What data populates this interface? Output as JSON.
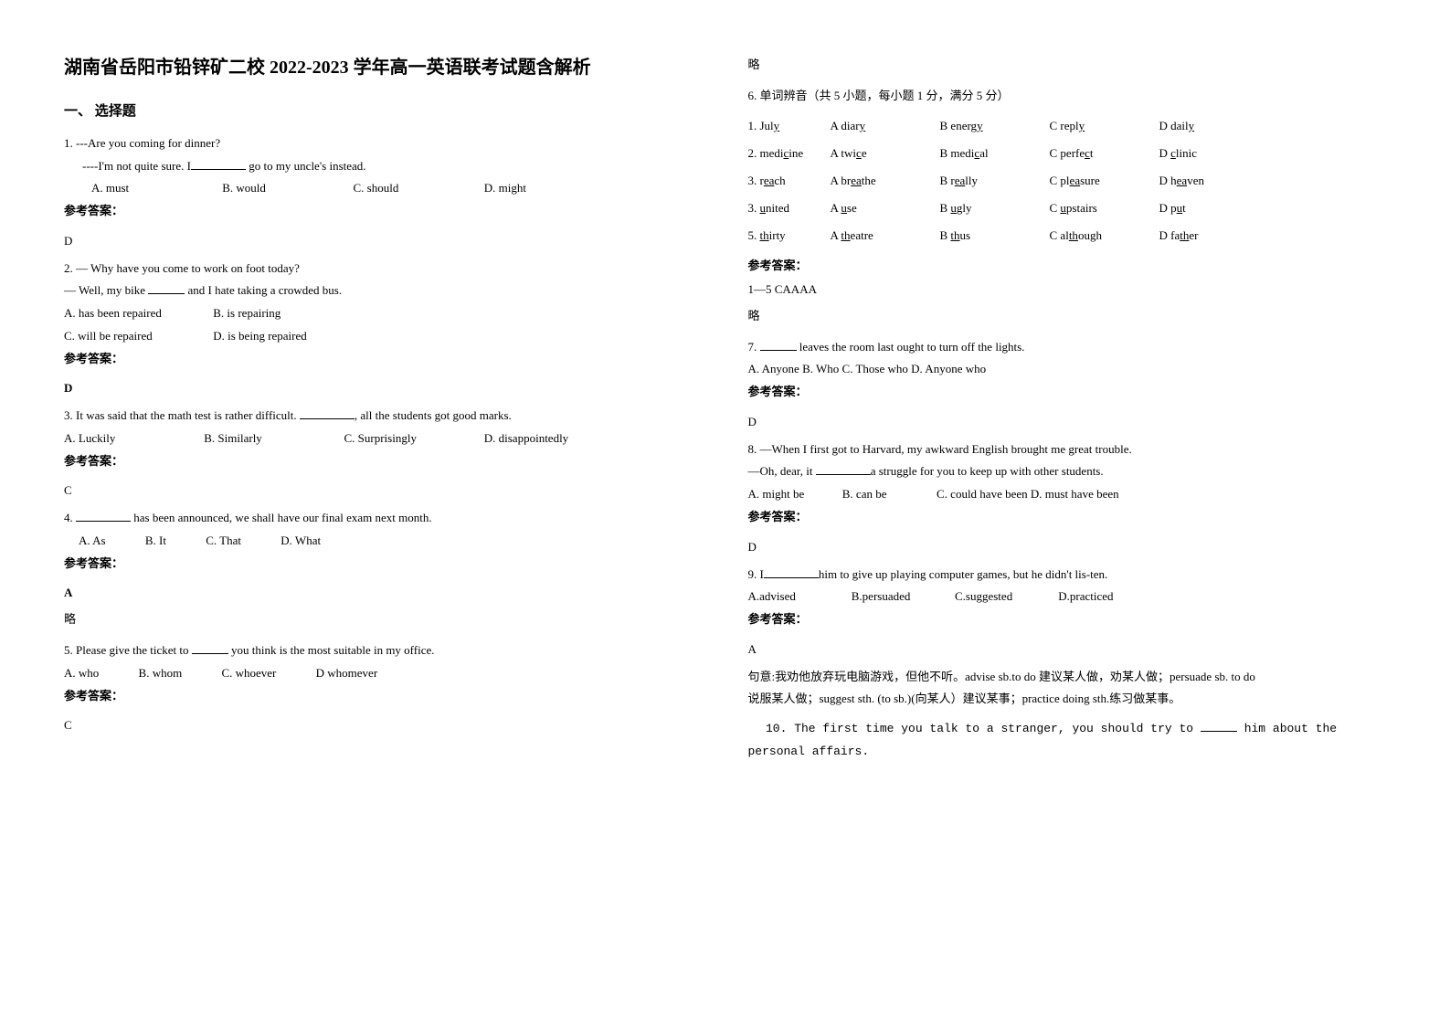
{
  "title": "湖南省岳阳市铅锌矿二校 2022-2023 学年高一英语联考试题含解析",
  "section1_header": "一、 选择题",
  "q1": {
    "line1": "1. ---Are you coming for dinner?",
    "line2_prefix": "----I'm not quite sure. I",
    "line2_suffix": " go to my uncle's instead.",
    "optA": "A. must",
    "optB": "B. would",
    "optC": "C. should",
    "optD": "D. might",
    "ans_label": "参考答案：",
    "ans": "D"
  },
  "q2": {
    "line1": "2. — Why have you come to work on foot today?",
    "line2_prefix": "— Well, my bike ",
    "line2_suffix": " and I hate taking a crowded bus.",
    "optA": "A. has been repaired",
    "optB": "B. is repairing",
    "optC": "C. will be repaired",
    "optD": "D. is being repaired",
    "ans_label": "参考答案：",
    "ans": "D"
  },
  "q3": {
    "line1_prefix": "3. It was said that the math test is rather difficult.  ",
    "line1_suffix": ", all the students got good marks.",
    "optA": "A. Luckily",
    "optB": "B. Similarly",
    "optC": "C. Surprisingly",
    "optD": "D. disappointedly",
    "ans_label": "参考答案：",
    "ans": "C"
  },
  "q4": {
    "line1_prefix": "4.  ",
    "line1_suffix": " has been announced, we shall have our final exam next month.",
    "optA": "A. As",
    "optB": "B. It",
    "optC": "C. That",
    "optD": "D. What",
    "ans_label": "参考答案：",
    "ans": "A",
    "omit": "略"
  },
  "q5": {
    "line1_prefix": "5. Please give the ticket to ",
    "line1_suffix": " you think is the most suitable in my office.",
    "optA": "A. who",
    "optB": "B. whom",
    "optC": "C. whoever",
    "optD": "D whomever",
    "ans_label": "参考答案：",
    "ans": "C",
    "omit": "略"
  },
  "q6": {
    "header": "6.  单词辨音（共 5 小题，每小题 1 分，满分 5 分）",
    "rows": [
      {
        "w": "1. Jul<u>y</u>",
        "a": "A diar<u>y</u>",
        "b": "B energ<u>y</u>",
        "c": "C repl<u>y</u>",
        "d": "D dail<u>y</u>"
      },
      {
        "w": "2. medi<u>c</u>ine",
        "a": "A twi<u>c</u>e",
        "b": "B medi<u>c</u>al",
        "c": "C perfe<u>c</u>t",
        "d": "D <u>c</u>linic"
      },
      {
        "w": "3. r<u>ea</u>ch",
        "a": "A br<u>ea</u>the",
        "b": "B r<u>ea</u>lly",
        "c": "C pl<u>ea</u>sure",
        "d": "D h<u>ea</u>ven"
      },
      {
        "w": "3. <u>u</u>nited",
        "a": "A <u>u</u>se",
        "b": "B <u>u</u>gly",
        "c": "C <u>u</u>pstairs",
        "d": "D p<u>u</u>t"
      },
      {
        "w": "5. <u>th</u>irty",
        "a": "A <u>th</u>eatre",
        "b": "B <u>th</u>us",
        "c": "C al<u>th</u>ough",
        "d": "D fa<u>th</u>er"
      }
    ],
    "ans_label": "参考答案：",
    "ans": "1—5 CAAAA",
    "omit": "略"
  },
  "q7": {
    "line1_prefix": "7. ",
    "line1_suffix": " leaves the room last ought to turn off the lights.",
    "opts": "A. Anyone   B. Who   C. Those who  D. Anyone who",
    "ans_label": "参考答案：",
    "ans": "D"
  },
  "q8": {
    "line1": "8. —When I first got to Harvard, my awkward English brought me great trouble.",
    "line2_prefix": "—Oh, dear, it ",
    "line2_suffix": "a struggle for you to keep up with other students.",
    "optA": "A. might be",
    "optB": "B. can be",
    "optC": "C. could have been D. must have been",
    "ans_label": "参考答案：",
    "ans": "D"
  },
  "q9": {
    "line1_prefix": "9. I",
    "line1_suffix": "him to give up playing computer games, but he didn't lis-ten.",
    "optA": "A.advised",
    "optB": "B.persuaded",
    "optC": "C.suggested",
    "optD": "D.practiced",
    "ans_label": "参考答案：",
    "ans": "A",
    "explain1": "句意:我劝他放弃玩电脑游戏，但他不听。advise sb.to do 建议某人做，劝某人做；persuade sb. to do",
    "explain2": "说服某人做；suggest sth. (to sb.)(向某人）建议某事；practice doing sth.练习做某事。"
  },
  "q10": {
    "line1_prefix": "10. The first time you talk to a stranger, you should try to ",
    "line1_suffix": " him about the personal affairs."
  }
}
